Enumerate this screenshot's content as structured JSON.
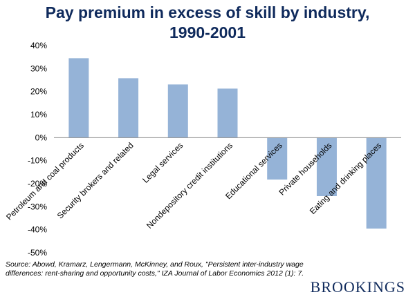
{
  "title_line1": "Pay premium in excess of skill by industry,",
  "title_line2": "1990-2001",
  "chart_data": {
    "type": "bar",
    "categories": [
      "Petroleum and coal products",
      "Security brokers and related",
      "Legal services",
      "Nondepository credit institutions",
      "Educational services",
      "Private households",
      "Eating and drinking places"
    ],
    "values": [
      34.5,
      25.8,
      23.1,
      21.3,
      -18.2,
      -25.4,
      -39.5
    ],
    "ylim": [
      -50,
      40
    ],
    "yticks": [
      "-50%",
      "-40%",
      "-30%",
      "-20%",
      "-10%",
      "0%",
      "10%",
      "20%",
      "30%",
      "40%"
    ],
    "bar_color": "#95b3d7",
    "grid": false
  },
  "source_text": "Source: Abowd, Kramarz, Lengermann, McKinney, and Roux, \"Persistent inter-industry wage differences: rent-sharing and opportunity costs,\" IZA Journal of Labor Economics 2012 (1): 7.",
  "brand": "BROOKINGS"
}
